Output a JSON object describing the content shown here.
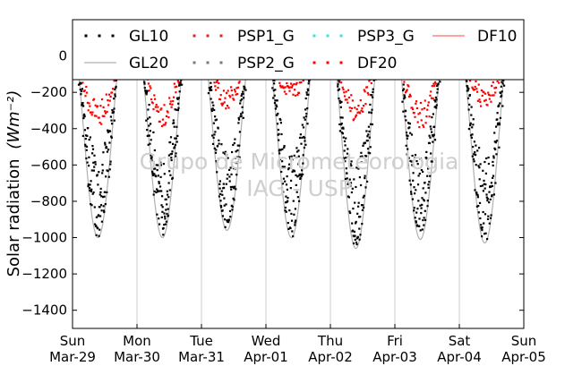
{
  "chart_data": {
    "type": "scatter",
    "ylabel": "Solar radiation",
    "ylabel_unit": "(Wm⁻²)",
    "ylim": [
      -1500,
      200
    ],
    "yticks": [
      0,
      -200,
      -400,
      -600,
      -800,
      -1000,
      -1200,
      -1400
    ],
    "xlim": [
      "2015-03-29",
      "2015-04-05"
    ],
    "xticks": [
      {
        "day": "Sun",
        "date": "Mar-29"
      },
      {
        "day": "Mon",
        "date": "Mar-30"
      },
      {
        "day": "Tue",
        "date": "Mar-31"
      },
      {
        "day": "Wed",
        "date": "Apr-01"
      },
      {
        "day": "Thu",
        "date": "Apr-02"
      },
      {
        "day": "Fri",
        "date": "Apr-03"
      },
      {
        "day": "Sat",
        "date": "Apr-04"
      },
      {
        "day": "Sun",
        "date": "Apr-05"
      }
    ],
    "grid": "vertical",
    "legend": {
      "placement": "top",
      "entries": [
        {
          "label": "GL10",
          "style": "dots",
          "color": "#000000"
        },
        {
          "label": "PSP1_G",
          "style": "dots",
          "color": "#d62728"
        },
        {
          "label": "PSP3_G",
          "style": "dots",
          "color": "#40e0d0"
        },
        {
          "label": "DF10",
          "style": "line",
          "color": "#ff6b6b"
        },
        {
          "label": "GL20",
          "style": "line",
          "color": "#b0b0b0"
        },
        {
          "label": "PSP2_G",
          "style": "dots",
          "color": "#7a7a7a"
        },
        {
          "label": "DF20",
          "style": "dots",
          "color": "#ff0000"
        }
      ]
    },
    "daily_minimum": [
      {
        "date": "Mar-29",
        "GL10": -1000
      },
      {
        "date": "Mar-30",
        "GL10": -1000
      },
      {
        "date": "Mar-31",
        "GL10": -960
      },
      {
        "date": "Apr-01",
        "GL10": -1000
      },
      {
        "date": "Apr-02",
        "GL10": -1060
      },
      {
        "date": "Apr-03",
        "GL10": -1010
      },
      {
        "date": "Apr-04",
        "GL10": -1030
      }
    ],
    "daily_diffuse_minimum": [
      {
        "date": "Mar-29",
        "DF20": -400
      },
      {
        "date": "Mar-30",
        "DF20": -390
      },
      {
        "date": "Mar-31",
        "DF20": -290
      },
      {
        "date": "Apr-01",
        "DF20": -240
      },
      {
        "date": "Apr-02",
        "DF20": -360
      },
      {
        "date": "Apr-03",
        "DF20": -420
      },
      {
        "date": "Apr-04",
        "DF20": -290
      }
    ],
    "watermark": [
      "Grupo de Micrometeorologia",
      "IAG - USP"
    ]
  }
}
